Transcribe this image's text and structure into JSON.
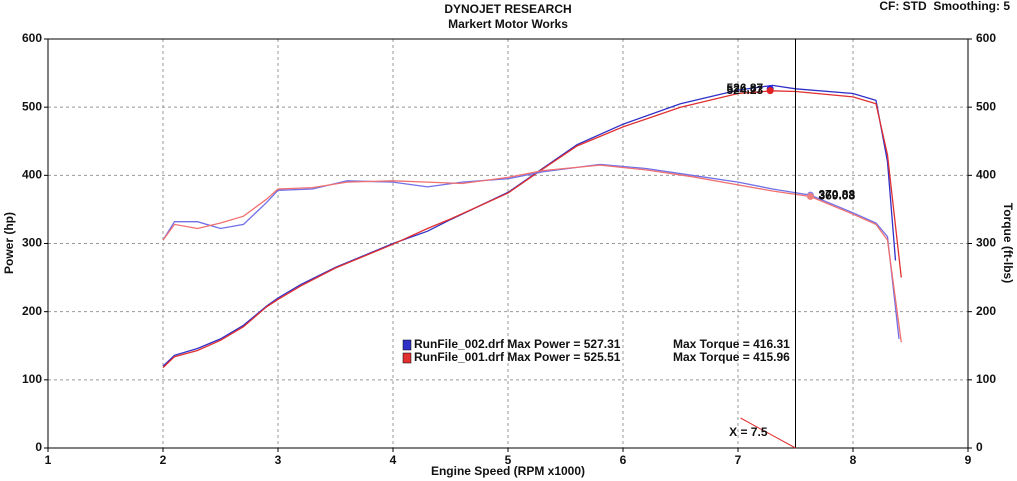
{
  "chart_data": {
    "type": "line",
    "title": "DYNOJET RESEARCH",
    "subtitle": "Markert Motor Works",
    "corner_text": "CF: STD  Smoothing: 5",
    "x_label": "Engine Speed (RPM x1000)",
    "y_label": "Power (hp)",
    "y2_label": "Torque (ft-lbs)",
    "xlim": [
      1,
      9
    ],
    "xticks": [
      1,
      2,
      3,
      4,
      5,
      6,
      7,
      8,
      9
    ],
    "ylim": [
      0,
      600
    ],
    "yticks": [
      0,
      100,
      200,
      300,
      400,
      500,
      600
    ],
    "y2lim": [
      0,
      600
    ],
    "y2ticks": [
      0,
      100,
      200,
      300,
      400,
      500,
      600
    ],
    "grid": true,
    "series": [
      {
        "color": "#3030c8",
        "axis": "y",
        "x": [
          2.0,
          2.1,
          2.3,
          2.5,
          2.7,
          2.9,
          3.0,
          3.2,
          3.5,
          4.0,
          4.3,
          4.5,
          5.0,
          5.3,
          5.6,
          6.0,
          6.5,
          7.0,
          7.3,
          7.5,
          8.0,
          8.2,
          8.3,
          8.37
        ],
        "values": [
          120,
          136,
          146,
          160,
          180,
          208,
          220,
          240,
          265,
          300,
          318,
          335,
          375,
          410,
          445,
          475,
          505,
          525,
          532,
          527,
          520,
          510,
          420,
          275
        ]
      },
      {
        "color": "#e03030",
        "axis": "y",
        "x": [
          2.0,
          2.1,
          2.3,
          2.5,
          2.7,
          2.9,
          3.0,
          3.2,
          3.5,
          4.0,
          4.3,
          4.5,
          5.0,
          5.3,
          5.6,
          6.0,
          6.5,
          7.0,
          7.3,
          7.5,
          8.0,
          8.2,
          8.3,
          8.42
        ],
        "values": [
          118,
          134,
          143,
          158,
          178,
          207,
          218,
          238,
          264,
          299,
          322,
          336,
          374,
          409,
          443,
          471,
          500,
          520,
          524,
          523,
          515,
          505,
          430,
          250
        ]
      },
      {
        "color": "#7070e8",
        "axis": "y2",
        "x": [
          2.0,
          2.1,
          2.3,
          2.5,
          2.7,
          2.9,
          3.0,
          3.3,
          3.6,
          4.0,
          4.3,
          4.6,
          5.0,
          5.3,
          5.8,
          6.2,
          6.6,
          7.0,
          7.3,
          7.63,
          8.0,
          8.2,
          8.3,
          8.4
        ],
        "values": [
          305,
          332,
          332,
          322,
          328,
          360,
          378,
          380,
          392,
          390,
          383,
          390,
          395,
          405,
          416,
          410,
          400,
          390,
          380,
          371,
          345,
          330,
          310,
          160
        ]
      },
      {
        "color": "#f07070",
        "axis": "y2",
        "x": [
          2.0,
          2.1,
          2.3,
          2.5,
          2.7,
          2.9,
          3.0,
          3.3,
          3.6,
          4.0,
          4.3,
          4.6,
          5.0,
          5.3,
          5.8,
          6.2,
          6.6,
          7.0,
          7.3,
          7.63,
          8.0,
          8.2,
          8.3,
          8.42
        ],
        "values": [
          305,
          328,
          322,
          330,
          340,
          365,
          380,
          382,
          390,
          392,
          390,
          388,
          397,
          407,
          415,
          408,
          398,
          386,
          377,
          369,
          343,
          328,
          305,
          155
        ]
      }
    ],
    "markers": [
      {
        "x": 7.28,
        "value": 526.87,
        "axis": "y",
        "color": "#2020e0"
      },
      {
        "x": 7.28,
        "value": 524.23,
        "axis": "y",
        "color": "#e02020"
      },
      {
        "x": 7.63,
        "value": 370.88,
        "axis": "y2",
        "color": "#8080f0"
      },
      {
        "x": 7.63,
        "value": 369.03,
        "axis": "y2",
        "color": "#f08080"
      }
    ],
    "cursor": {
      "x": 7.5,
      "label": "X = 7.5"
    },
    "legend": [
      {
        "color": "#3030c8",
        "text": "RunFile_002.drf Max Power = 527.31",
        "torque": "Max Torque = 416.31"
      },
      {
        "color": "#e03030",
        "text": "RunFile_001.drf Max Power = 525.51",
        "torque": "Max Torque = 415.96"
      }
    ]
  }
}
